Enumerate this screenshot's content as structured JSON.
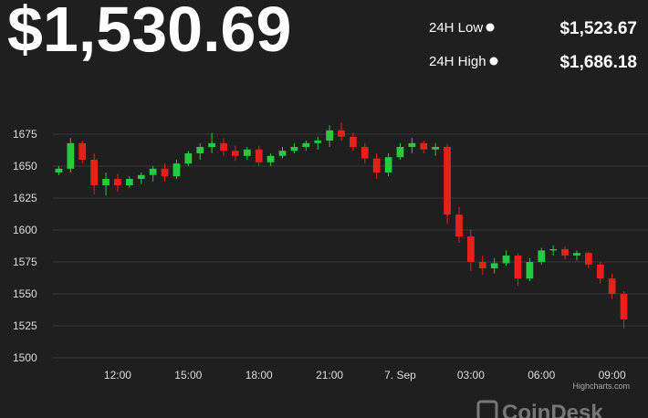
{
  "header": {
    "price": "$1,530.69",
    "stats": [
      {
        "label": "24H Low",
        "value": "$1,523.67"
      },
      {
        "label": "24H High",
        "value": "$1,686.18"
      }
    ]
  },
  "chart_data": {
    "type": "candlestick",
    "categories": [
      null,
      null,
      null,
      null,
      null,
      "12:00",
      null,
      null,
      null,
      null,
      null,
      "15:00",
      null,
      null,
      null,
      null,
      null,
      "18:00",
      null,
      null,
      null,
      null,
      null,
      "21:00",
      null,
      null,
      null,
      null,
      null,
      "7. Sep",
      null,
      null,
      null,
      null,
      null,
      "03:00",
      null,
      null,
      null,
      null,
      null,
      "06:00",
      null,
      null,
      null,
      null,
      null,
      "09:00",
      null
    ],
    "ohlc": [
      [
        1645,
        1650,
        1643,
        1648
      ],
      [
        1648,
        1672,
        1645,
        1668
      ],
      [
        1668,
        1670,
        1652,
        1655
      ],
      [
        1655,
        1660,
        1628,
        1635
      ],
      [
        1635,
        1645,
        1627,
        1640
      ],
      [
        1640,
        1644,
        1630,
        1635
      ],
      [
        1635,
        1642,
        1633,
        1640
      ],
      [
        1640,
        1645,
        1636,
        1643
      ],
      [
        1643,
        1650,
        1638,
        1648
      ],
      [
        1648,
        1652,
        1638,
        1642
      ],
      [
        1642,
        1655,
        1640,
        1652
      ],
      [
        1652,
        1662,
        1650,
        1660
      ],
      [
        1660,
        1668,
        1655,
        1665
      ],
      [
        1665,
        1676,
        1660,
        1668
      ],
      [
        1668,
        1672,
        1658,
        1662
      ],
      [
        1662,
        1666,
        1654,
        1658
      ],
      [
        1658,
        1665,
        1655,
        1663
      ],
      [
        1663,
        1666,
        1650,
        1653
      ],
      [
        1653,
        1660,
        1650,
        1658
      ],
      [
        1658,
        1665,
        1656,
        1662
      ],
      [
        1662,
        1668,
        1660,
        1665
      ],
      [
        1665,
        1670,
        1662,
        1668
      ],
      [
        1668,
        1673,
        1663,
        1670
      ],
      [
        1670,
        1682,
        1665,
        1678
      ],
      [
        1678,
        1684,
        1670,
        1673
      ],
      [
        1673,
        1676,
        1662,
        1665
      ],
      [
        1665,
        1668,
        1652,
        1656
      ],
      [
        1656,
        1660,
        1640,
        1645
      ],
      [
        1645,
        1660,
        1642,
        1657
      ],
      [
        1657,
        1668,
        1655,
        1665
      ],
      [
        1665,
        1672,
        1660,
        1668
      ],
      [
        1668,
        1670,
        1660,
        1663
      ],
      [
        1663,
        1668,
        1658,
        1665
      ],
      [
        1665,
        1667,
        1605,
        1612
      ],
      [
        1612,
        1618,
        1590,
        1595
      ],
      [
        1595,
        1600,
        1568,
        1575
      ],
      [
        1575,
        1580,
        1565,
        1570
      ],
      [
        1570,
        1578,
        1566,
        1574
      ],
      [
        1574,
        1584,
        1572,
        1580
      ],
      [
        1580,
        1582,
        1556,
        1562
      ],
      [
        1562,
        1578,
        1560,
        1575
      ],
      [
        1575,
        1586,
        1573,
        1584
      ],
      [
        1584,
        1588,
        1580,
        1585
      ],
      [
        1585,
        1587,
        1577,
        1580
      ],
      [
        1580,
        1584,
        1576,
        1582
      ],
      [
        1582,
        1583,
        1570,
        1573
      ],
      [
        1573,
        1575,
        1558,
        1562
      ],
      [
        1562,
        1566,
        1546,
        1550
      ],
      [
        1550,
        1552,
        1523,
        1530
      ]
    ],
    "up_color": "#27c93f",
    "down_color": "#e8201c",
    "ylim": [
      1500,
      1700
    ],
    "yticks": [
      1500,
      1525,
      1550,
      1575,
      1600,
      1625,
      1650,
      1675
    ],
    "grid": true
  },
  "credit": "Highcharts.com",
  "logo": "CoinDesk"
}
